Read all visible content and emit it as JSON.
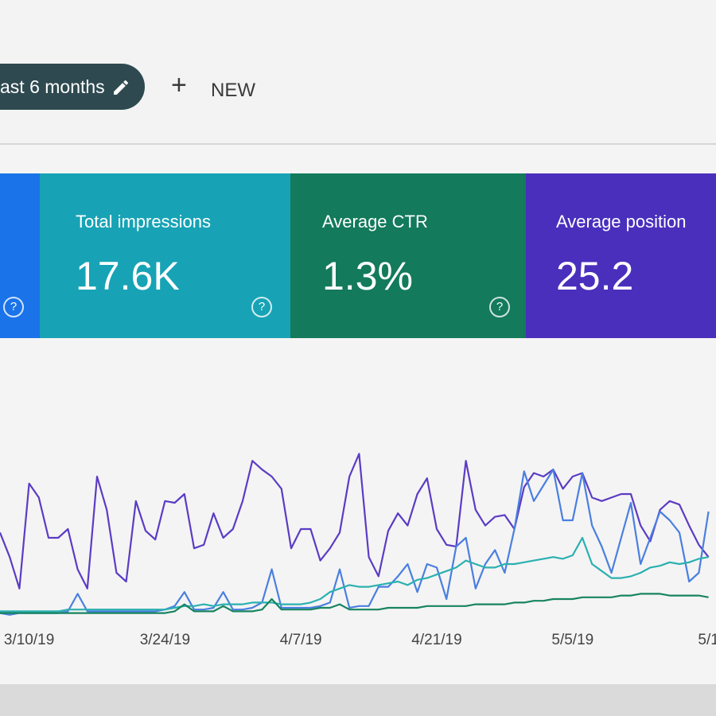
{
  "toolbar": {
    "date_chip": "ast 6 months",
    "new_button": "NEW"
  },
  "cards": [
    {
      "title": "Total impressions",
      "value": "17.6K"
    },
    {
      "title": "Average CTR",
      "value": "1.3%"
    },
    {
      "title": "Average position",
      "value": "25.2"
    }
  ],
  "chart_data": {
    "type": "line",
    "categories": [
      null,
      null,
      null,
      "3/10/19",
      null,
      null,
      null,
      null,
      null,
      null,
      null,
      null,
      null,
      null,
      null,
      null,
      null,
      "3/24/19",
      null,
      null,
      null,
      null,
      null,
      null,
      null,
      null,
      null,
      null,
      null,
      null,
      null,
      "4/7/19",
      null,
      null,
      null,
      null,
      null,
      null,
      null,
      null,
      null,
      null,
      null,
      null,
      null,
      "4/21/19",
      null,
      null,
      null,
      null,
      null,
      null,
      null,
      null,
      null,
      null,
      null,
      null,
      null,
      "5/5/19",
      null,
      null,
      null,
      null,
      null,
      null,
      null,
      null,
      null,
      null,
      null,
      null,
      null,
      "5/1"
    ],
    "ylim": [
      0,
      100
    ],
    "series": [
      {
        "color": "#5b3cc4",
        "values": [
          48,
          34,
          16,
          76,
          68,
          45,
          45,
          50,
          27,
          16,
          80,
          61,
          25,
          20,
          66,
          49,
          44,
          66,
          65,
          70,
          39,
          41,
          59,
          45,
          50,
          66,
          89,
          84,
          80,
          73,
          39,
          50,
          50,
          32,
          39,
          48,
          80,
          93,
          34,
          23,
          49,
          59,
          52,
          70,
          79,
          50,
          41,
          40,
          89,
          61,
          52,
          57,
          58,
          50,
          74,
          82,
          80,
          84,
          73,
          80,
          82,
          68,
          66,
          68,
          70,
          70,
          52,
          43,
          61,
          66,
          64,
          52,
          41,
          34
        ]
      },
      {
        "color": "#4a7fe0",
        "values": [
          2,
          1,
          2,
          2,
          2,
          2,
          2,
          3,
          13,
          3,
          3,
          3,
          3,
          3,
          3,
          3,
          3,
          4,
          6,
          14,
          4,
          4,
          5,
          14,
          4,
          4,
          5,
          8,
          27,
          5,
          5,
          5,
          5,
          6,
          8,
          27,
          5,
          6,
          6,
          17,
          17,
          23,
          30,
          14,
          30,
          28,
          10,
          40,
          45,
          16,
          30,
          38,
          25,
          50,
          83,
          66,
          75,
          84,
          55,
          55,
          82,
          52,
          40,
          25,
          45,
          65,
          30,
          45,
          60,
          55,
          48,
          20,
          25,
          60
        ]
      },
      {
        "color": "#2bb0b0",
        "values": [
          3,
          3,
          3,
          3,
          3,
          3,
          3,
          4,
          4,
          4,
          4,
          4,
          4,
          4,
          4,
          4,
          4,
          4,
          5,
          6,
          6,
          7,
          6,
          7,
          7,
          7,
          8,
          8,
          8,
          7,
          7,
          7,
          8,
          10,
          14,
          16,
          18,
          17,
          17,
          18,
          19,
          20,
          18,
          21,
          22,
          24,
          26,
          28,
          32,
          30,
          28,
          28,
          30,
          30,
          31,
          32,
          33,
          34,
          33,
          35,
          45,
          30,
          26,
          22,
          22,
          23,
          25,
          28,
          29,
          31,
          30,
          31,
          33,
          34
        ]
      },
      {
        "color": "#17845f",
        "values": [
          2,
          2,
          2,
          2,
          2,
          2,
          2,
          2,
          2,
          2,
          2,
          2,
          2,
          2,
          2,
          2,
          2,
          2,
          3,
          7,
          3,
          3,
          3,
          6,
          3,
          3,
          3,
          4,
          10,
          4,
          4,
          4,
          4,
          5,
          5,
          7,
          4,
          4,
          4,
          4,
          5,
          5,
          5,
          5,
          6,
          6,
          6,
          6,
          6,
          7,
          7,
          7,
          7,
          8,
          8,
          9,
          9,
          10,
          10,
          10,
          11,
          11,
          11,
          11,
          12,
          12,
          13,
          13,
          13,
          12,
          12,
          12,
          12,
          11
        ]
      }
    ]
  }
}
